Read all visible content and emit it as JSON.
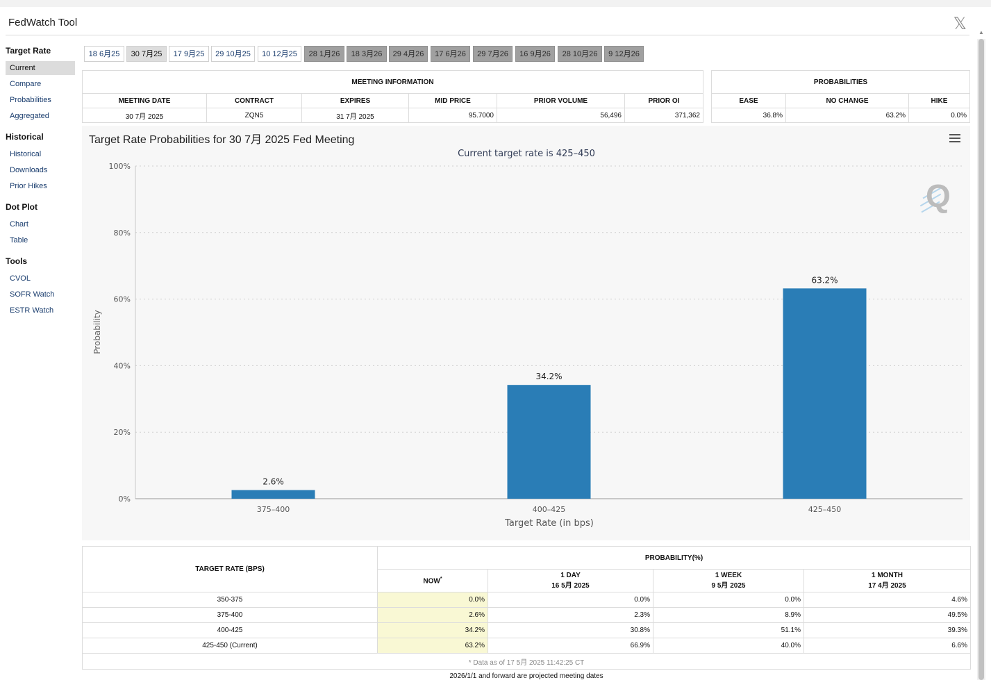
{
  "app": {
    "title": "FedWatch Tool"
  },
  "sidebar": {
    "groups": [
      {
        "title": "Target Rate",
        "items": [
          "Current",
          "Compare",
          "Probabilities",
          "Aggregated"
        ]
      },
      {
        "title": "Historical",
        "items": [
          "Historical",
          "Downloads",
          "Prior Hikes"
        ]
      },
      {
        "title": "Dot Plot",
        "items": [
          "Chart",
          "Table"
        ]
      },
      {
        "title": "Tools",
        "items": [
          "CVOL",
          "SOFR Watch",
          "ESTR Watch"
        ]
      }
    ]
  },
  "tabs": [
    "18 6月25",
    "30 7月25",
    "17 9月25",
    "29 10月25",
    "10 12月25",
    "28 1月26",
    "18 3月26",
    "29 4月26",
    "17 6月26",
    "29 7月26",
    "16 9月26",
    "28 10月26",
    "9 12月26"
  ],
  "meeting_info": {
    "title": "MEETING INFORMATION",
    "headers": [
      "MEETING DATE",
      "CONTRACT",
      "EXPIRES",
      "MID PRICE",
      "PRIOR VOLUME",
      "PRIOR OI"
    ],
    "row": [
      "30 7月 2025",
      "ZQN5",
      "31 7月 2025",
      "95.7000",
      "56,496",
      "371,362"
    ]
  },
  "probabilities": {
    "title": "PROBABILITIES",
    "headers": [
      "EASE",
      "NO CHANGE",
      "HIKE"
    ],
    "row": [
      "36.8%",
      "63.2%",
      "0.0%"
    ]
  },
  "chart": {
    "title": "Target Rate Probabilities for 30 7月 2025 Fed Meeting",
    "subtitle": "Current target rate is 425–450",
    "accent": "#2a7db6"
  },
  "chart_data": {
    "type": "bar",
    "title": "Target Rate Probabilities for 30 7月 2025 Fed Meeting",
    "subtitle": "Current target rate is 425–450",
    "categories": [
      "375–400",
      "400–425",
      "425–450"
    ],
    "values": [
      2.6,
      34.2,
      63.2
    ],
    "data_labels": [
      "2.6%",
      "34.2%",
      "63.2%"
    ],
    "xlabel": "Target Rate (in bps)",
    "ylabel": "Probability",
    "ylim": [
      0,
      100
    ],
    "yticks": [
      "0%",
      "20%",
      "40%",
      "60%",
      "80%",
      "100%"
    ],
    "ytick_values": [
      0,
      20,
      40,
      60,
      80,
      100
    ],
    "grid": true,
    "legend": "none",
    "bar_color": "#2a7db6"
  },
  "prob_table": {
    "rate_header": "TARGET RATE (BPS)",
    "group_header": "PROBABILITY(%)",
    "col_now": "NOW",
    "col_now_mark": "*",
    "cols": [
      {
        "label": "1 DAY",
        "date": "16 5月 2025"
      },
      {
        "label": "1 WEEK",
        "date": "9 5月 2025"
      },
      {
        "label": "1 MONTH",
        "date": "17 4月 2025"
      }
    ],
    "rows": [
      {
        "rate": "350-375",
        "now": "0.0%",
        "d1": "0.0%",
        "w1": "0.0%",
        "m1": "4.6%"
      },
      {
        "rate": "375-400",
        "now": "2.6%",
        "d1": "2.3%",
        "w1": "8.9%",
        "m1": "49.5%"
      },
      {
        "rate": "400-425",
        "now": "34.2%",
        "d1": "30.8%",
        "w1": "51.1%",
        "m1": "39.3%"
      },
      {
        "rate": "425-450 (Current)",
        "now": "63.2%",
        "d1": "66.9%",
        "w1": "40.0%",
        "m1": "6.6%"
      }
    ],
    "note": "* Data as of 17 5月 2025 11:42:25 CT"
  },
  "footnote": "2026/1/1 and forward are projected meeting dates"
}
